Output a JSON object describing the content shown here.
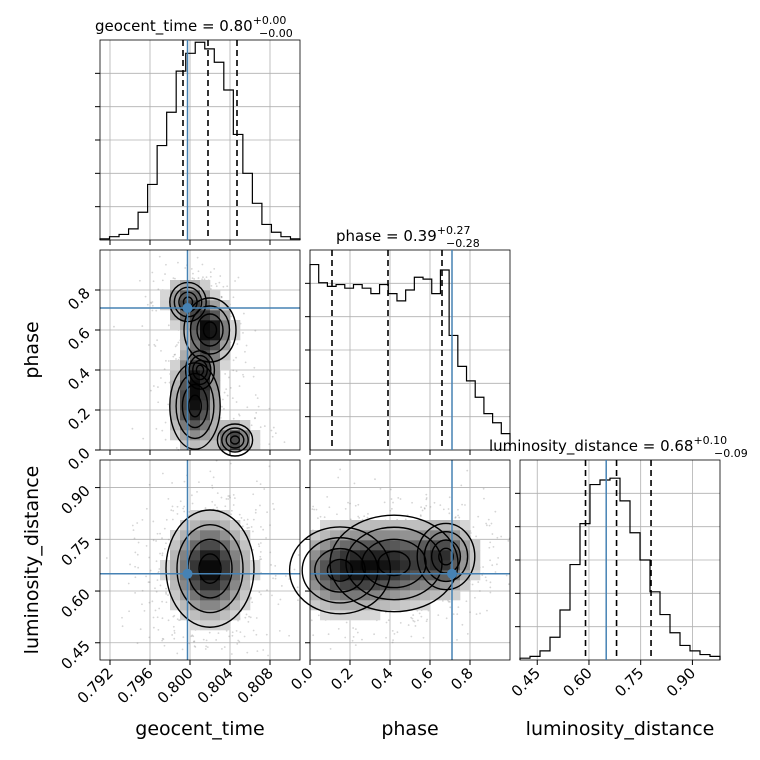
{
  "colors": {
    "truth": "#4682b4",
    "line": "#000000",
    "grid": "#b0b0b0"
  },
  "chart_data": {
    "type": "corner",
    "parameters": [
      "geocent_time",
      "phase",
      "luminosity_distance"
    ],
    "truth": {
      "geocent_time": 0.79975,
      "phase": 0.71,
      "luminosity_distance": 0.65
    },
    "marginals": [
      {
        "param": "geocent_time",
        "title": {
          "name": "geocent_time",
          "median": "0.80",
          "plus": "+0.00",
          "minus": "−0.00"
        },
        "quantiles": [
          0.7993,
          0.8018,
          0.8047
        ],
        "range": [
          0.791,
          0.811
        ],
        "ylim": [
          0,
          18
        ],
        "counts": [
          0.1,
          0.3,
          0.5,
          1.0,
          2.5,
          5.0,
          8.5,
          11.5,
          15.2,
          16.8,
          17.8,
          17.2,
          16.0,
          13.5,
          9.5,
          6.0,
          3.3,
          1.4,
          0.7,
          0.3,
          0.1
        ],
        "ticks": [
          {
            "label": "0.792",
            "value": 0.792
          },
          {
            "label": "0.796",
            "value": 0.796
          },
          {
            "label": "0.800",
            "value": 0.8
          },
          {
            "label": "0.804",
            "value": 0.804
          },
          {
            "label": "0.808",
            "value": 0.808
          }
        ],
        "axis_label": "geocent_time"
      },
      {
        "param": "phase",
        "title": {
          "name": "phase",
          "median": "0.39",
          "plus": "+0.27",
          "minus": "−0.28"
        },
        "quantiles": [
          0.11,
          0.39,
          0.66
        ],
        "range": [
          0,
          1
        ],
        "ylim": [
          0,
          55
        ],
        "counts": [
          51,
          46,
          45,
          45.5,
          44.5,
          45.5,
          44.5,
          43,
          45.5,
          43,
          41,
          44,
          47.5,
          47,
          43,
          49.5,
          31.5,
          23,
          19,
          14.5,
          10,
          7.5,
          4.5
        ],
        "ticks": [
          {
            "label": "0.0",
            "value": 0.0
          },
          {
            "label": "0.2",
            "value": 0.2
          },
          {
            "label": "0.4",
            "value": 0.4
          },
          {
            "label": "0.6",
            "value": 0.6
          },
          {
            "label": "0.8",
            "value": 0.8
          }
        ],
        "axis_label": "phase"
      },
      {
        "param": "luminosity_distance",
        "title": {
          "name": "luminosity_distance",
          "median": "0.68",
          "plus": "+0.10",
          "minus": "−0.09"
        },
        "quantiles": [
          0.59,
          0.68,
          0.78
        ],
        "range": [
          0.4,
          0.98
        ],
        "ylim": [
          0,
          22
        ],
        "counts": [
          0.2,
          0.4,
          1.0,
          2.5,
          5.5,
          10.5,
          15.0,
          19.3,
          19.8,
          20.0,
          17.5,
          14.0,
          11.0,
          7.5,
          5.0,
          3.0,
          1.6,
          1.0,
          0.6,
          0.4
        ],
        "ticks": [
          {
            "label": "0.45",
            "value": 0.45
          },
          {
            "label": "0.60",
            "value": 0.6
          },
          {
            "label": "0.75",
            "value": 0.75
          },
          {
            "label": "0.90",
            "value": 0.9
          }
        ],
        "axis_label": "luminosity_distance"
      }
    ],
    "joint": [
      {
        "x": "geocent_time",
        "y": "phase",
        "xrange": [
          0.791,
          0.811
        ],
        "yrange": [
          0,
          1
        ],
        "y_ticks": [
          {
            "label": "0.0",
            "value": 0.0
          },
          {
            "label": "0.2",
            "value": 0.2
          },
          {
            "label": "0.4",
            "value": 0.4
          },
          {
            "label": "0.6",
            "value": 0.6
          },
          {
            "label": "0.8",
            "value": 0.8
          }
        ],
        "y_axis_label": "phase",
        "modes": [
          {
            "x": 0.802,
            "y": 0.6,
            "sx": 0.0013,
            "sy": 0.08,
            "w": 1.0
          },
          {
            "x": 0.8005,
            "y": 0.22,
            "sx": 0.0014,
            "sy": 0.12,
            "w": 0.9
          },
          {
            "x": 0.8045,
            "y": 0.05,
            "sx": 0.0011,
            "sy": 0.05,
            "w": 0.8
          },
          {
            "x": 0.801,
            "y": 0.4,
            "sx": 0.0012,
            "sy": 0.08,
            "w": 0.6
          },
          {
            "x": 0.7998,
            "y": 0.74,
            "sx": 0.0013,
            "sy": 0.07,
            "w": 0.7
          }
        ]
      },
      {
        "x": "geocent_time",
        "y": "luminosity_distance",
        "xrange": [
          0.791,
          0.811
        ],
        "yrange": [
          0.4,
          0.98
        ],
        "y_ticks": [
          {
            "label": "0.45",
            "value": 0.45
          },
          {
            "label": "0.60",
            "value": 0.6
          },
          {
            "label": "0.75",
            "value": 0.75
          },
          {
            "label": "0.90",
            "value": 0.9
          }
        ],
        "y_axis_label": "luminosity_distance",
        "modes": [
          {
            "x": 0.802,
            "y": 0.665,
            "sx": 0.0022,
            "sy": 0.085,
            "w": 1.0
          }
        ]
      },
      {
        "x": "phase",
        "y": "luminosity_distance",
        "xrange": [
          0,
          1
        ],
        "yrange": [
          0.4,
          0.98
        ],
        "modes": [
          {
            "x": 0.15,
            "y": 0.66,
            "sx": 0.14,
            "sy": 0.07,
            "w": 0.9
          },
          {
            "x": 0.42,
            "y": 0.68,
            "sx": 0.16,
            "sy": 0.07,
            "w": 1.0
          },
          {
            "x": 0.68,
            "y": 0.7,
            "sx": 0.09,
            "sy": 0.06,
            "w": 0.8
          }
        ]
      }
    ]
  }
}
